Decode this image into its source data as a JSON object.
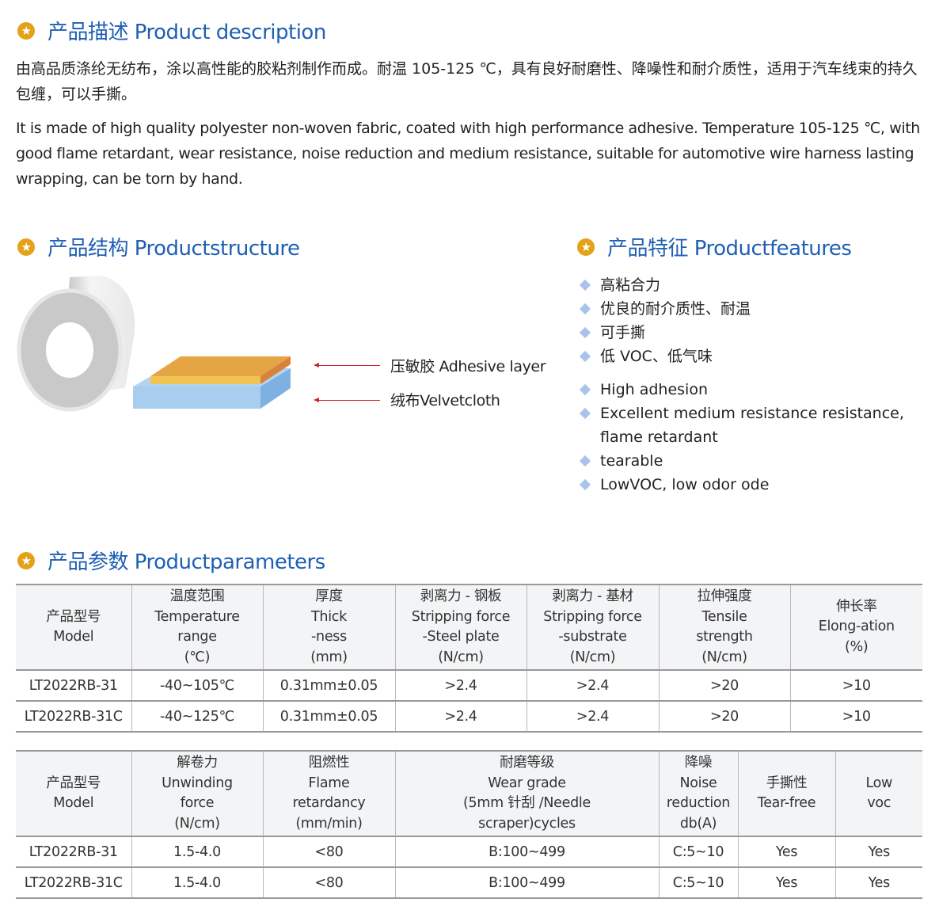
{
  "sections": {
    "description": {
      "title": "产品描述 Product description",
      "zh": "由高品质涤纶无纺布，涂以高性能的胶粘剂制作而成。耐温 105-125 ℃，具有良好耐磨性、降噪性和耐介质性，适用于汽车线束的持久包缠，可以手撕。",
      "en": "It is made of high quality polyester non-woven fabric, coated with high performance adhesive. Temperature 105-125 ℃, with good flame retardant, wear resistance, noise reduction and medium resistance, suitable for automotive wire harness lasting wrapping, can be torn by hand."
    },
    "structure": {
      "title": "产品结构 Productstructure",
      "adhesive_label": "压敏胶 Adhesive layer",
      "cloth_label": "绒布Velvetcloth"
    },
    "features": {
      "title": "产品特征 Productfeatures",
      "items": [
        "高粘合力",
        "优良的耐介质性、耐温",
        "可手撕",
        "低 VOC、低气味",
        "High adhesion",
        "Excellent medium resistance resistance, flame retardant",
        "tearable",
        "LowVOC, low odor ode"
      ]
    },
    "parameters": {
      "title": "产品参数 Productparameters"
    }
  },
  "table1": {
    "headers": [
      [
        "产品型号",
        "Model"
      ],
      [
        "温度范围",
        "Temperature",
        "range",
        "(℃)"
      ],
      [
        "厚度",
        "Thick",
        "-ness",
        "(mm)"
      ],
      [
        "剥离力 - 钢板",
        "Stripping force",
        "-Steel plate",
        "(N/cm)"
      ],
      [
        "剥离力 - 基材",
        "Stripping force",
        "-substrate",
        "(N/cm)"
      ],
      [
        "拉伸强度",
        "Tensile",
        "strength",
        "(N/cm)"
      ],
      [
        "伸长率",
        "Elong-ation",
        "(%)"
      ]
    ],
    "rows": [
      [
        "LT2022RB-31",
        "-40~105℃",
        "0.31mm±0.05",
        ">2.4",
        ">2.4",
        ">20",
        ">10"
      ],
      [
        "LT2022RB-31C",
        "-40~125℃",
        "0.31mm±0.05",
        ">2.4",
        ">2.4",
        ">20",
        ">10"
      ]
    ]
  },
  "table2": {
    "headers": [
      [
        "产品型号",
        "Model"
      ],
      [
        "解卷力",
        "Unwinding",
        "force",
        "(N/cm)"
      ],
      [
        "阻燃性",
        "Flame",
        "retardancy",
        "(mm/min)"
      ],
      [
        "耐磨等级",
        "Wear grade",
        "(5mm 针刮 /Needle",
        "scraper)cycles"
      ],
      [
        "降噪",
        "Noise",
        "reduction",
        "db(A)"
      ],
      [
        "手撕性",
        "Tear-free"
      ],
      [
        "Low",
        "voc"
      ]
    ],
    "rows": [
      [
        "LT2022RB-31",
        "1.5-4.0",
        "<80",
        "B:100~499",
        "C:5~10",
        "Yes",
        "Yes"
      ],
      [
        "LT2022RB-31C",
        "1.5-4.0",
        "<80",
        "B:100~499",
        "C:5~10",
        "Yes",
        "Yes"
      ]
    ]
  },
  "colors": {
    "heading": "#1f5fb4",
    "star": "#e3a21a",
    "arrow": "#d0232a",
    "adhesive": "#e8a94a",
    "cloth": "#aacdee"
  }
}
